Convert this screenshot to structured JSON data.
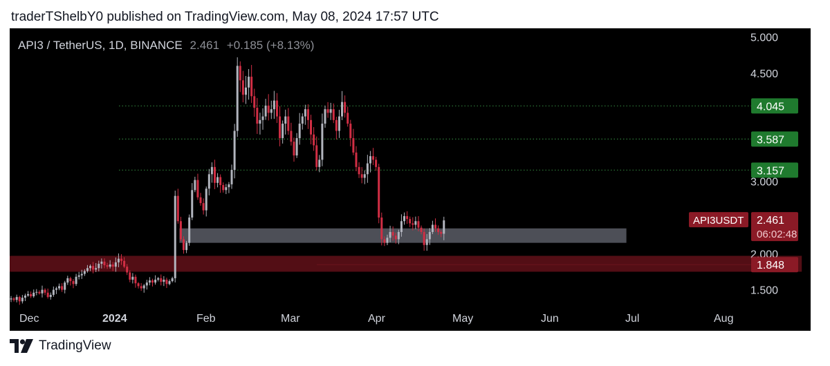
{
  "header": {
    "published_line": "traderTShelbY0 published on TradingView.com, May 08, 2024 17:57 UTC"
  },
  "footer": {
    "brand": "TradingView"
  },
  "colors": {
    "background": "#000000",
    "up_candle": "#b2b5be",
    "down_candle": "#d12e44",
    "green_label": "#1f7a2e",
    "red_label": "#8b1a26",
    "support_zone": "#5a5d66",
    "demand_zone": "#5c0f17",
    "level_line": "#d12e44"
  },
  "chart_data": {
    "type": "candlestick",
    "symbol_line": {
      "symbol": "API3 / TetherUS, 1D, BINANCE",
      "price": "2.461",
      "change": "+0.185 (+8.13%)"
    },
    "x_labels": [
      "Dec",
      "2024",
      "Feb",
      "Mar",
      "Apr",
      "May",
      "Jun",
      "Jul",
      "Aug"
    ],
    "y_ticks": [
      "5.000",
      "4.500",
      "3.000",
      "2.000",
      "1.500"
    ],
    "ylim": [
      1.2,
      5.12
    ],
    "horizontal_levels": [
      {
        "value": 4.045,
        "label": "4.045",
        "style": "dotted"
      },
      {
        "value": 3.587,
        "label": "3.587",
        "style": "dotted"
      },
      {
        "value": 3.157,
        "label": "3.157",
        "style": "dotted"
      },
      {
        "value": 1.848,
        "label": "1.848",
        "style": "solid"
      }
    ],
    "current_price": {
      "ticker": "API3USDT",
      "value": 2.461,
      "label": "2.461",
      "countdown": "06:02:48"
    },
    "zones": [
      {
        "name": "support",
        "from": 2.15,
        "to": 2.35,
        "start": "2024-01-24",
        "end": "2024-06-30"
      },
      {
        "name": "demand",
        "from": 1.75,
        "to": 1.97,
        "start": "2023-11-25",
        "end": "2024-08-31"
      }
    ],
    "candles_start": "2023-11-25",
    "closes": [
      1.38,
      1.36,
      1.4,
      1.34,
      1.39,
      1.42,
      1.44,
      1.41,
      1.46,
      1.47,
      1.45,
      1.5,
      1.46,
      1.4,
      1.43,
      1.5,
      1.52,
      1.55,
      1.5,
      1.6,
      1.66,
      1.62,
      1.58,
      1.68,
      1.7,
      1.72,
      1.76,
      1.8,
      1.83,
      1.78,
      1.8,
      1.86,
      1.89,
      1.84,
      1.82,
      1.85,
      1.82,
      1.88,
      1.93,
      1.9,
      1.82,
      1.74,
      1.64,
      1.68,
      1.59,
      1.55,
      1.52,
      1.56,
      1.6,
      1.63,
      1.6,
      1.64,
      1.66,
      1.61,
      1.64,
      1.58,
      1.62,
      1.66,
      2.8,
      2.45,
      2.2,
      2.05,
      2.15,
      2.5,
      2.88,
      3.02,
      2.78,
      2.7,
      2.6,
      2.9,
      3.1,
      3.2,
      2.98,
      3.06,
      2.95,
      2.88,
      2.92,
      2.96,
      3.16,
      3.7,
      4.6,
      4.4,
      4.2,
      4.3,
      4.45,
      4.18,
      4.02,
      3.8,
      3.85,
      3.9,
      4.05,
      3.95,
      4.0,
      4.12,
      3.9,
      3.6,
      3.8,
      3.9,
      3.7,
      3.55,
      3.36,
      3.6,
      3.8,
      3.9,
      4.0,
      3.85,
      3.65,
      3.5,
      3.2,
      3.3,
      3.8,
      4.0,
      3.95,
      4.0,
      3.85,
      3.7,
      3.9,
      4.1,
      3.95,
      3.8,
      3.6,
      3.4,
      3.2,
      3.1,
      3.05,
      3.1,
      3.25,
      3.35,
      3.3,
      3.2,
      2.5,
      2.2,
      2.15,
      2.22,
      2.3,
      2.25,
      2.2,
      2.3,
      2.45,
      2.52,
      2.48,
      2.42,
      2.4,
      2.45,
      2.36,
      2.3,
      2.12,
      2.2,
      2.3,
      2.4,
      2.35,
      2.3,
      2.276,
      2.461
    ]
  }
}
